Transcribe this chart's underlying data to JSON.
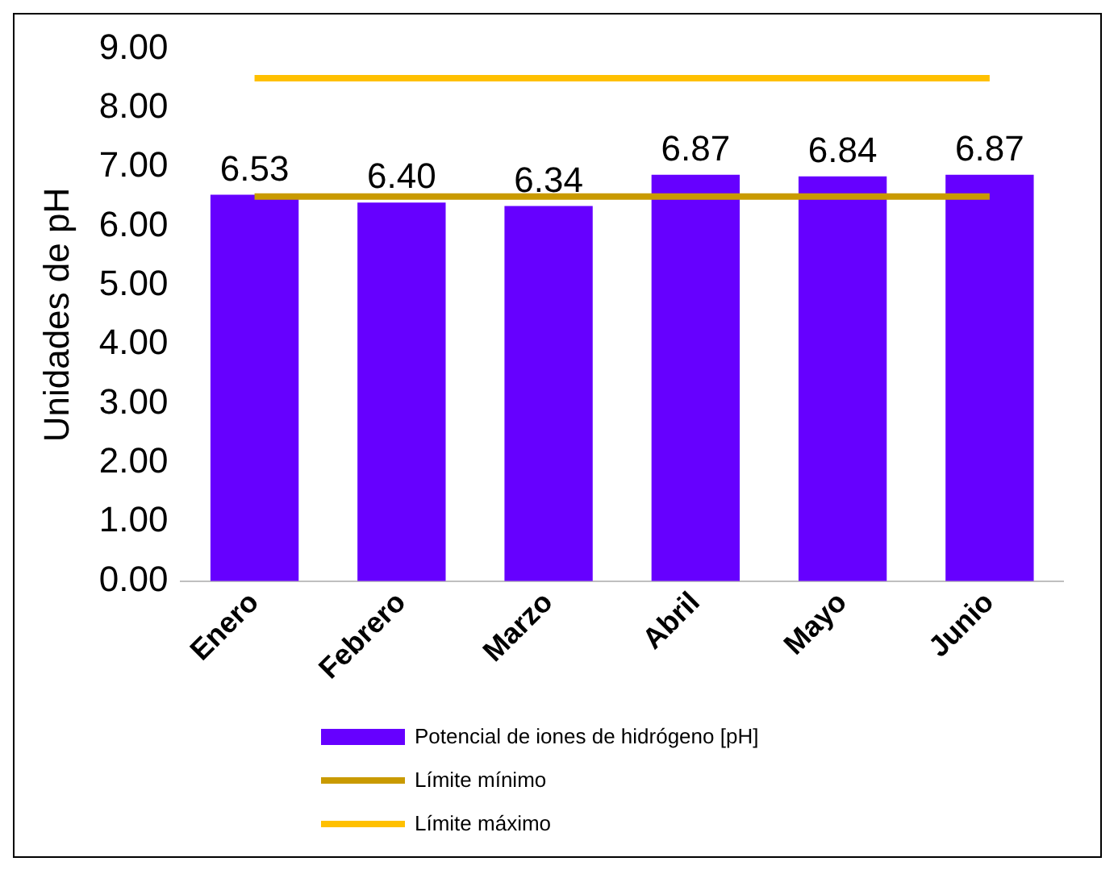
{
  "chart_data": {
    "type": "bar",
    "ylabel": "Unidades de pH",
    "categories": [
      "Enero",
      "Febrero",
      "Marzo",
      "Abril",
      "Mayo",
      "Junio"
    ],
    "series": [
      {
        "name": "Potencial de iones de hidrógeno [pH]",
        "color": "#6600ff",
        "values": [
          6.53,
          6.4,
          6.34,
          6.87,
          6.84,
          6.87
        ],
        "value_labels": [
          "6.53",
          "6.40",
          "6.34",
          "6.87",
          "6.84",
          "6.87"
        ]
      },
      {
        "name": "Límite mínimo",
        "type": "line",
        "color": "#c99a00",
        "values": [
          6.5,
          6.5,
          6.5,
          6.5,
          6.5,
          6.5
        ]
      },
      {
        "name": "Límite máximo",
        "type": "line",
        "color": "#ffc000",
        "values": [
          8.5,
          8.5,
          8.5,
          8.5,
          8.5,
          8.5
        ]
      }
    ],
    "ylim": [
      0,
      9
    ],
    "yticks": [
      {
        "value": 0,
        "label": "0.00"
      },
      {
        "value": 1,
        "label": "1.00"
      },
      {
        "value": 2,
        "label": "2.00"
      },
      {
        "value": 3,
        "label": "3.00"
      },
      {
        "value": 4,
        "label": "4.00"
      },
      {
        "value": 5,
        "label": "5.00"
      },
      {
        "value": 6,
        "label": "6.00"
      },
      {
        "value": 7,
        "label": "7.00"
      },
      {
        "value": 8,
        "label": "8.00"
      },
      {
        "value": 9,
        "label": "9.00"
      }
    ],
    "grid": false,
    "legend": "bottom",
    "marker": "none"
  }
}
